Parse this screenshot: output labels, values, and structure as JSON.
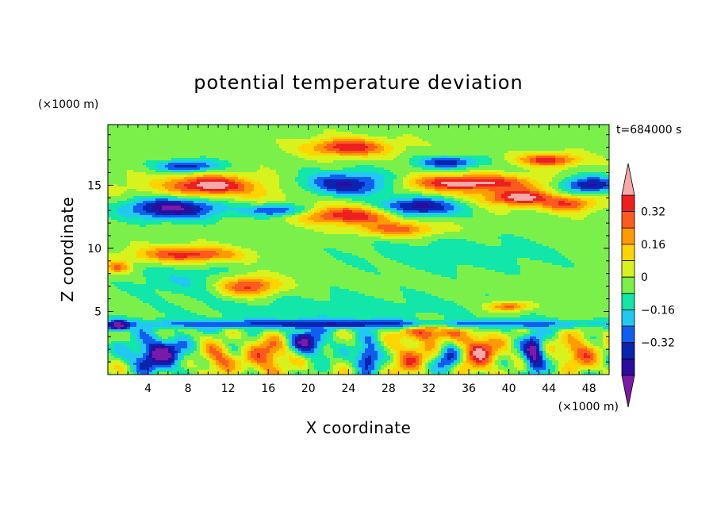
{
  "chart_data": {
    "type": "heatmap",
    "title": "potential temperature deviation",
    "xlabel": "X coordinate",
    "ylabel": "Z coordinate",
    "x_unit": "(×1000 m)",
    "y_unit": "(×1000 m)",
    "time_label": "t=684000 s",
    "xlim": [
      0,
      50
    ],
    "ylim": [
      0,
      19.8
    ],
    "x_ticks": [
      4,
      8,
      12,
      16,
      20,
      24,
      28,
      32,
      36,
      40,
      44,
      48
    ],
    "y_ticks": [
      5,
      10,
      15
    ],
    "colorbar": {
      "levels": [
        -0.48,
        -0.4,
        -0.32,
        -0.24,
        -0.16,
        -0.08,
        0,
        0.08,
        0.16,
        0.24,
        0.32,
        0.4
      ],
      "colors": [
        "#7a1aa8",
        "#2b0d9e",
        "#0a24b0",
        "#0f5ef0",
        "#21c8f2",
        "#12e6a8",
        "#7cf04a",
        "#d8f21e",
        "#ffd400",
        "#ff9a00",
        "#ff5a1e",
        "#ee1f1f",
        "#f7a9a9"
      ],
      "tick_labels": [
        {
          "value": 0.32,
          "label": "0.32"
        },
        {
          "value": 0.16,
          "label": "0.16"
        },
        {
          "value": 0,
          "label": "0"
        },
        {
          "value": -0.16,
          "label": "−0.16"
        },
        {
          "value": -0.32,
          "label": "−0.32"
        }
      ]
    },
    "field": {
      "background_value": -0.03,
      "features": [
        {
          "x": 25,
          "z": 14.5,
          "sx": 28,
          "sz": 1.2,
          "v": 0.12
        },
        {
          "x": 10,
          "z": 15,
          "sx": 4,
          "sz": 0.8,
          "v": 0.42
        },
        {
          "x": 24,
          "z": 18,
          "sx": 4,
          "sz": 0.7,
          "v": 0.42
        },
        {
          "x": 36,
          "z": 15.2,
          "sx": 6,
          "sz": 0.6,
          "v": 0.42
        },
        {
          "x": 44,
          "z": 17,
          "sx": 3,
          "sz": 0.5,
          "v": 0.4
        },
        {
          "x": 41,
          "z": 14,
          "sx": 3,
          "sz": 0.6,
          "v": 0.42
        },
        {
          "x": 46,
          "z": 13.5,
          "sx": 2.5,
          "sz": 0.6,
          "v": 0.32
        },
        {
          "x": 24,
          "z": 12.6,
          "sx": 5,
          "sz": 0.7,
          "v": 0.42
        },
        {
          "x": 29,
          "z": 11.5,
          "sx": 4,
          "sz": 0.6,
          "v": 0.3
        },
        {
          "x": 6.5,
          "z": 13.2,
          "sx": 5,
          "sz": 0.9,
          "v": -0.48
        },
        {
          "x": 24,
          "z": 15,
          "sx": 5,
          "sz": 1,
          "v": -0.48
        },
        {
          "x": 31,
          "z": 13.3,
          "sx": 4,
          "sz": 0.8,
          "v": -0.48
        },
        {
          "x": 48,
          "z": 15,
          "sx": 3,
          "sz": 0.7,
          "v": -0.45
        },
        {
          "x": 34,
          "z": 16.8,
          "sx": 3,
          "sz": 0.5,
          "v": -0.35
        },
        {
          "x": 8,
          "z": 16.5,
          "sx": 3,
          "sz": 0.5,
          "v": -0.36
        },
        {
          "x": 17,
          "z": 13,
          "sx": 3,
          "sz": 0.5,
          "v": -0.36
        },
        {
          "x": 8,
          "z": 9.5,
          "sx": 5,
          "sz": 0.6,
          "v": 0.4
        },
        {
          "x": 14,
          "z": 7,
          "sx": 3,
          "sz": 0.8,
          "v": 0.42
        },
        {
          "x": 1,
          "z": 8.5,
          "sx": 1.2,
          "sz": 0.5,
          "v": 0.3
        },
        {
          "x": 32,
          "z": 3.4,
          "sx": 2.5,
          "sz": 0.8,
          "v": 0.42
        },
        {
          "x": 40,
          "z": 5.4,
          "sx": 2,
          "sz": 0.4,
          "v": 0.35
        },
        {
          "x": 8,
          "z": 7.5,
          "sx": 6,
          "sz": 1.2,
          "v": -0.12
        },
        {
          "x": 35,
          "z": 9.5,
          "sx": 12,
          "sz": 1.5,
          "v": -0.1
        },
        {
          "x": 23,
          "z": 5,
          "sx": 18,
          "sz": 1.6,
          "v": -0.1
        },
        {
          "x": 25,
          "z": 4,
          "sx": 30,
          "sz": 0.35,
          "v": -0.28
        },
        {
          "x": 5,
          "z": 1.6,
          "sx": 2.5,
          "sz": 1.3,
          "v": -0.48
        },
        {
          "x": 11,
          "z": 1.2,
          "sx": 1.5,
          "sz": 1.2,
          "v": 0.3
        },
        {
          "x": 16,
          "z": 1.5,
          "sx": 2,
          "sz": 1.4,
          "v": 0.34
        },
        {
          "x": 20,
          "z": 2.5,
          "sx": 1.8,
          "sz": 1,
          "v": -0.4
        },
        {
          "x": 26,
          "z": 1.4,
          "sx": 1.2,
          "sz": 1,
          "v": -0.46
        },
        {
          "x": 30,
          "z": 1.3,
          "sx": 2,
          "sz": 1.1,
          "v": 0.3
        },
        {
          "x": 37,
          "z": 1.8,
          "sx": 2,
          "sz": 1.6,
          "v": 0.38
        },
        {
          "x": 42.5,
          "z": 1.6,
          "sx": 1,
          "sz": 1.6,
          "v": -0.48
        },
        {
          "x": 47,
          "z": 1.8,
          "sx": 1.8,
          "sz": 1.3,
          "v": 0.3
        },
        {
          "x": 1,
          "z": 3.8,
          "sx": 1,
          "sz": 0.5,
          "v": -0.4
        },
        {
          "x": 34,
          "z": 1.2,
          "sx": 1.2,
          "sz": 1,
          "v": -0.35
        }
      ]
    }
  }
}
